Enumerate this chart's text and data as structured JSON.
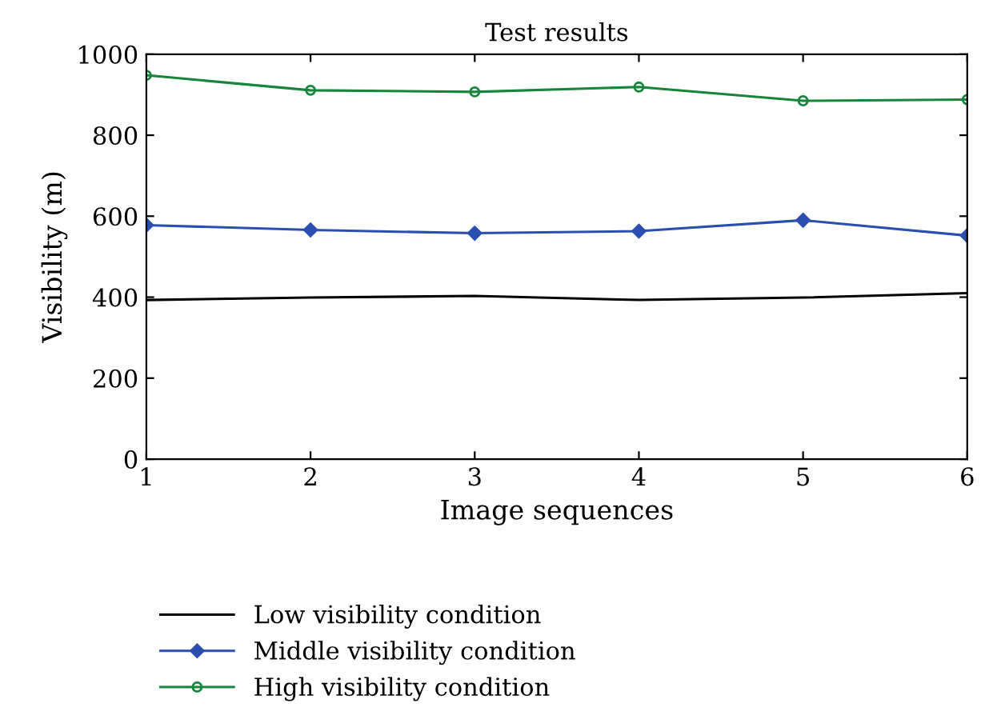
{
  "chart_data": {
    "type": "line",
    "title": "Test results",
    "xlabel": "Image sequences",
    "ylabel": "Visibility (m)",
    "x": [
      1,
      2,
      3,
      4,
      5,
      6
    ],
    "series": [
      {
        "name": "Low visibility condition",
        "color": "#000000",
        "marker": "none",
        "values": [
          393,
          399,
          403,
          393,
          399,
          410
        ]
      },
      {
        "name": "Middle visibility condition",
        "color": "#2a4fb0",
        "marker": "diamond",
        "values": [
          578,
          566,
          558,
          563,
          590,
          552
        ]
      },
      {
        "name": "High visibility condition",
        "color": "#17853a",
        "marker": "circle",
        "values": [
          948,
          911,
          907,
          919,
          885,
          888
        ]
      }
    ],
    "xlim": [
      1,
      6
    ],
    "xticks": [
      1,
      2,
      3,
      4,
      5,
      6
    ],
    "ylim": [
      0,
      1000
    ],
    "yticks": [
      0,
      200,
      400,
      600,
      800,
      1000
    ],
    "grid": false,
    "legend": "bottom",
    "line_style": "solid"
  }
}
